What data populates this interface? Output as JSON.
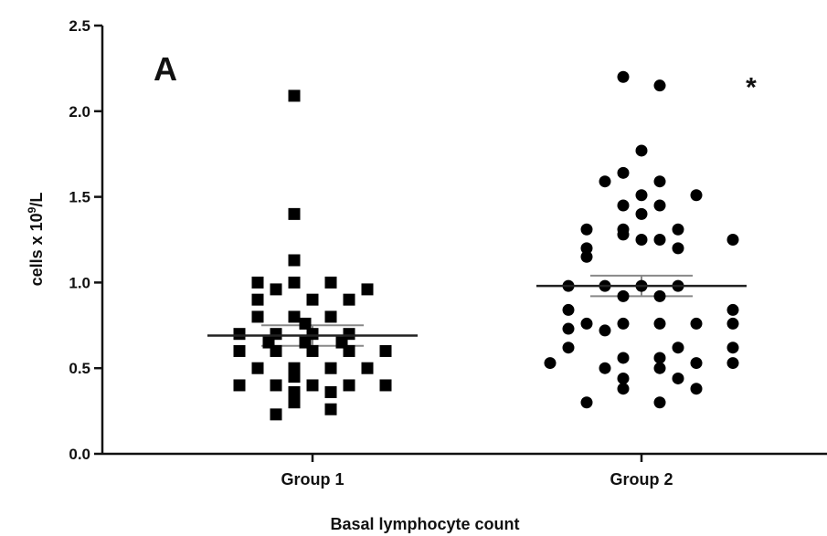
{
  "chart_data": {
    "type": "scatter",
    "title": "",
    "panel_label": "A",
    "xlabel": "Basal lymphocyte count",
    "ylabel_main": "cells x 10",
    "ylabel_sup": "9",
    "ylabel_tail": "/L",
    "ylim": [
      0,
      2.5
    ],
    "yticks": [
      0.0,
      0.5,
      1.0,
      1.5,
      2.0,
      2.5
    ],
    "ytick_labels": [
      "0.0",
      "0.5",
      "1.0",
      "1.5",
      "2.0",
      "2.5"
    ],
    "categories": [
      "Group 1",
      "Group 2"
    ],
    "grid": false,
    "series": [
      {
        "category": "Group 1",
        "marker": "square",
        "mean": 0.69,
        "sem": [
          0.63,
          0.75
        ],
        "points": [
          [
            -0.05,
            2.09
          ],
          [
            -0.05,
            1.4
          ],
          [
            -0.05,
            1.13
          ],
          [
            -0.15,
            1.0
          ],
          [
            -0.05,
            1.0
          ],
          [
            0.05,
            1.0
          ],
          [
            -0.1,
            0.96
          ],
          [
            0.15,
            0.96
          ],
          [
            -0.15,
            0.9
          ],
          [
            0.0,
            0.9
          ],
          [
            0.1,
            0.9
          ],
          [
            -0.15,
            0.8
          ],
          [
            -0.05,
            0.8
          ],
          [
            0.05,
            0.8
          ],
          [
            -0.02,
            0.76
          ],
          [
            -0.2,
            0.7
          ],
          [
            -0.1,
            0.7
          ],
          [
            0.0,
            0.7
          ],
          [
            0.1,
            0.7
          ],
          [
            -0.12,
            0.65
          ],
          [
            -0.02,
            0.65
          ],
          [
            0.08,
            0.65
          ],
          [
            -0.2,
            0.6
          ],
          [
            -0.1,
            0.6
          ],
          [
            0.0,
            0.6
          ],
          [
            0.1,
            0.6
          ],
          [
            0.2,
            0.6
          ],
          [
            -0.15,
            0.5
          ],
          [
            -0.05,
            0.5
          ],
          [
            0.05,
            0.5
          ],
          [
            0.15,
            0.5
          ],
          [
            -0.05,
            0.45
          ],
          [
            -0.2,
            0.4
          ],
          [
            -0.1,
            0.4
          ],
          [
            0.0,
            0.4
          ],
          [
            0.1,
            0.4
          ],
          [
            0.2,
            0.4
          ],
          [
            -0.05,
            0.36
          ],
          [
            0.05,
            0.36
          ],
          [
            -0.05,
            0.3
          ],
          [
            0.05,
            0.26
          ],
          [
            -0.1,
            0.23
          ]
        ]
      },
      {
        "category": "Group 2",
        "marker": "circle",
        "mean": 0.98,
        "sem": [
          0.92,
          1.04
        ],
        "points": [
          [
            -0.05,
            2.2
          ],
          [
            0.05,
            2.15
          ],
          [
            0.0,
            1.77
          ],
          [
            -0.05,
            1.64
          ],
          [
            -0.1,
            1.59
          ],
          [
            0.05,
            1.59
          ],
          [
            0.0,
            1.51
          ],
          [
            0.15,
            1.51
          ],
          [
            -0.05,
            1.45
          ],
          [
            0.05,
            1.45
          ],
          [
            0.0,
            1.4
          ],
          [
            -0.15,
            1.31
          ],
          [
            -0.05,
            1.31
          ],
          [
            0.1,
            1.31
          ],
          [
            -0.05,
            1.28
          ],
          [
            0.0,
            1.25
          ],
          [
            0.05,
            1.25
          ],
          [
            0.25,
            1.25
          ],
          [
            -0.15,
            1.2
          ],
          [
            0.1,
            1.2
          ],
          [
            -0.15,
            1.15
          ],
          [
            -0.2,
            0.98
          ],
          [
            -0.1,
            0.98
          ],
          [
            0.0,
            0.98
          ],
          [
            0.1,
            0.98
          ],
          [
            -0.05,
            0.92
          ],
          [
            0.05,
            0.92
          ],
          [
            -0.2,
            0.84
          ],
          [
            0.25,
            0.84
          ],
          [
            -0.15,
            0.76
          ],
          [
            -0.05,
            0.76
          ],
          [
            0.05,
            0.76
          ],
          [
            0.15,
            0.76
          ],
          [
            0.25,
            0.76
          ],
          [
            -0.2,
            0.73
          ],
          [
            -0.1,
            0.72
          ],
          [
            -0.2,
            0.62
          ],
          [
            0.1,
            0.62
          ],
          [
            0.25,
            0.62
          ],
          [
            -0.25,
            0.53
          ],
          [
            -0.05,
            0.56
          ],
          [
            0.05,
            0.56
          ],
          [
            0.15,
            0.53
          ],
          [
            0.25,
            0.53
          ],
          [
            -0.1,
            0.5
          ],
          [
            0.05,
            0.5
          ],
          [
            -0.05,
            0.44
          ],
          [
            0.1,
            0.44
          ],
          [
            -0.05,
            0.38
          ],
          [
            0.15,
            0.38
          ],
          [
            -0.15,
            0.3
          ],
          [
            0.05,
            0.3
          ]
        ]
      }
    ],
    "annotations": [
      {
        "text": "*",
        "category": "Group 2",
        "x_offset": 0.3,
        "y": 2.15
      }
    ]
  }
}
